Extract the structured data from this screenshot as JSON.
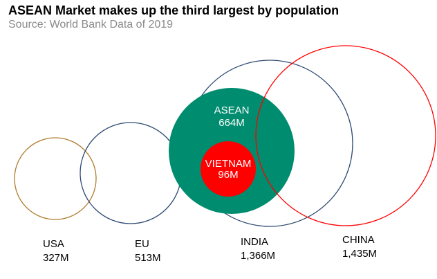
{
  "chart_data": {
    "type": "bubble",
    "title": "ASEAN Market makes up the third largest by population",
    "subtitle": "Source: World Bank Data of 2019",
    "unit": "M",
    "series": [
      {
        "name": "USA",
        "value_label": "327M",
        "value": 327,
        "color": "#b07a2a",
        "style": "outline"
      },
      {
        "name": "EU",
        "value_label": "513M",
        "value": 513,
        "color": "#2e4a72",
        "style": "outline"
      },
      {
        "name": "INDIA",
        "value_label": "1,366M",
        "value": 1366,
        "color": "#2e4a72",
        "style": "outline"
      },
      {
        "name": "ASEAN",
        "value_label": "664M",
        "value": 664,
        "color": "#008c6e",
        "style": "filled"
      },
      {
        "name": "VIETNAM",
        "value_label": "96M",
        "value": 96,
        "color": "#ff0000",
        "style": "filled"
      },
      {
        "name": "CHINA",
        "value_label": "1,435M",
        "value": 1435,
        "color": "#ff0000",
        "style": "outline"
      }
    ]
  }
}
